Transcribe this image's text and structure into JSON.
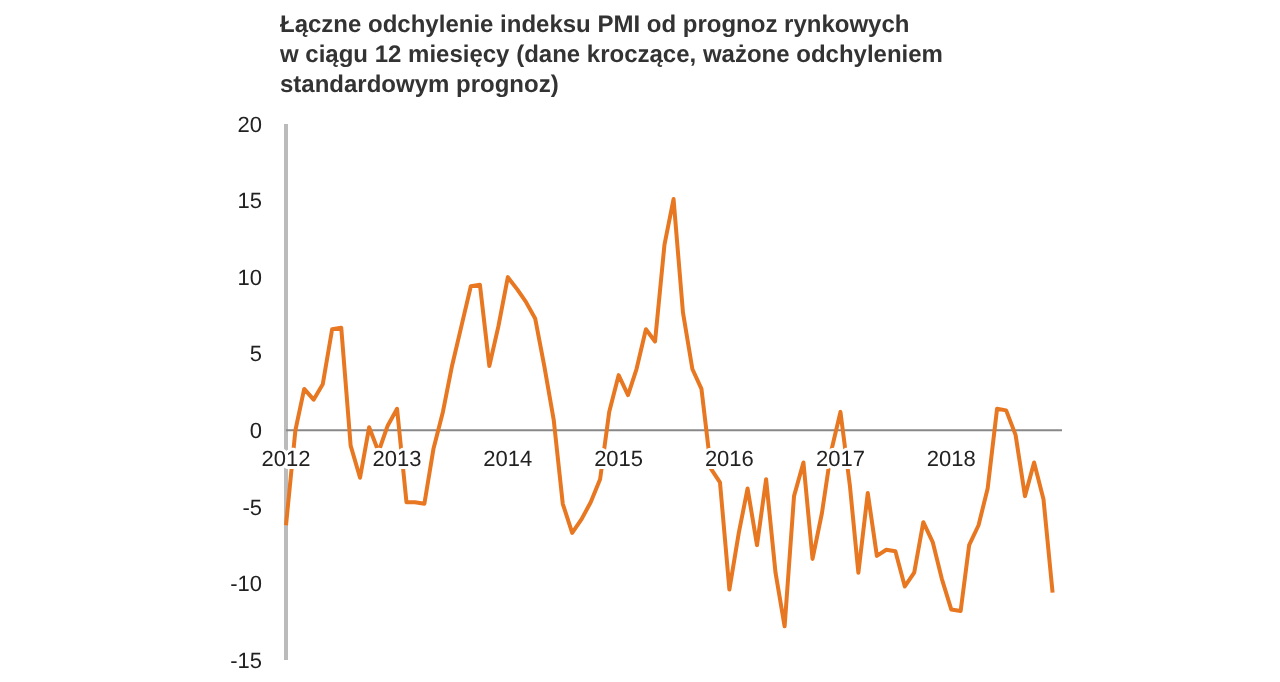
{
  "chart_data": {
    "type": "line",
    "title": "Łączne odchylenie indeksu PMI od prognoz rynkowych\nw ciągu 12 miesięcy (dane kroczące, ważone odchyleniem\nstandardowym prognoz)",
    "x": [
      "2012-01",
      "2012-02",
      "2012-03",
      "2012-04",
      "2012-05",
      "2012-06",
      "2012-07",
      "2012-08",
      "2012-09",
      "2012-10",
      "2012-11",
      "2012-12",
      "2013-01",
      "2013-02",
      "2013-03",
      "2013-04",
      "2013-05",
      "2013-06",
      "2013-07",
      "2013-08",
      "2013-09",
      "2013-10",
      "2013-11",
      "2013-12",
      "2014-01",
      "2014-02",
      "2014-03",
      "2014-04",
      "2014-05",
      "2014-06",
      "2014-07",
      "2014-08",
      "2014-09",
      "2014-10",
      "2014-11",
      "2014-12",
      "2015-01",
      "2015-02",
      "2015-03",
      "2015-04",
      "2015-05",
      "2015-06",
      "2015-07",
      "2015-08",
      "2015-09",
      "2015-10",
      "2015-11",
      "2015-12",
      "2016-01",
      "2016-02",
      "2016-03",
      "2016-04",
      "2016-05",
      "2016-06",
      "2016-07",
      "2016-08",
      "2016-09",
      "2016-10",
      "2016-11",
      "2016-12",
      "2017-01",
      "2017-02",
      "2017-03",
      "2017-04",
      "2017-05",
      "2017-06",
      "2017-07",
      "2017-08",
      "2017-09",
      "2017-10",
      "2017-11",
      "2017-12",
      "2018-01",
      "2018-02",
      "2018-03",
      "2018-04",
      "2018-05",
      "2018-06",
      "2018-07",
      "2018-08",
      "2018-09",
      "2018-10",
      "2018-11",
      "2018-12"
    ],
    "series": [
      {
        "color": "#e87722",
        "values": [
          -6.2,
          0,
          2.7,
          2.0,
          3.0,
          6.6,
          6.7,
          -1.0,
          -3.1,
          0.2,
          -1.4,
          0.3,
          1.4,
          -4.7,
          -4.7,
          -4.8,
          -1.2,
          1.2,
          4.2,
          6.8,
          9.4,
          9.5,
          4.2,
          6.8,
          10.0,
          9.2,
          8.4,
          7.3,
          4.2,
          0.7,
          -4.8,
          -6.7,
          -5.8,
          -4.7,
          -3.2,
          1.2,
          3.6,
          2.3,
          4.0,
          6.6,
          5.8,
          12.1,
          15.1,
          7.7,
          4.0,
          2.7,
          -2.5,
          -3.4,
          -10.4,
          -6.7,
          -3.8,
          -7.5,
          -3.2,
          -9.3,
          -12.8,
          -4.3,
          -2.1,
          -8.4,
          -5.4,
          -1.4,
          1.2,
          -3.6,
          -9.3,
          -4.1,
          -8.2,
          -7.8,
          -7.9,
          -10.2,
          -9.3,
          -6.0,
          -7.3,
          -9.7,
          -11.7,
          -11.8,
          -7.5,
          -6.2,
          -3.8,
          1.4,
          1.3,
          -0.3,
          -4.3,
          -2.1,
          -4.5,
          -10.6
        ]
      }
    ],
    "xlim": [
      "2012-01",
      "2019-01"
    ],
    "xticks": [
      {
        "value": "2012-01",
        "label": "2012"
      },
      {
        "value": "2013-01",
        "label": "2013"
      },
      {
        "value": "2014-01",
        "label": "2014"
      },
      {
        "value": "2015-01",
        "label": "2015"
      },
      {
        "value": "2016-01",
        "label": "2016"
      },
      {
        "value": "2017-01",
        "label": "2017"
      },
      {
        "value": "2018-01",
        "label": "2018"
      }
    ],
    "ylim": [
      -15,
      20
    ],
    "yticks": [
      -15,
      -10,
      -5,
      0,
      5,
      10,
      15,
      20
    ],
    "grid": false,
    "marker": "none",
    "line_style": "solid"
  }
}
